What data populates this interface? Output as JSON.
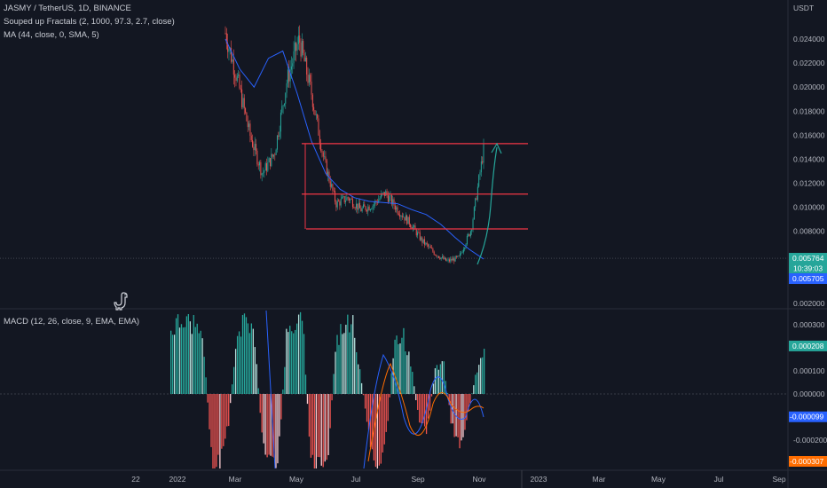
{
  "legend": {
    "symbol": "JASMY / TetherUS, 1D, BINANCE",
    "fractals": "Souped up Fractals (2, 1000, 97.3, 2.7, close)",
    "ma": "MA (44, close, 0, SMA, 5)",
    "macd": "MACD (12, 26, close, 9, EMA, EMA)"
  },
  "price_axis": {
    "unit": "USDT",
    "ticks": [
      "0.024000",
      "0.022000",
      "0.020000",
      "0.018000",
      "0.016000",
      "0.014000",
      "0.012000",
      "0.010000",
      "0.008000",
      "0.004000",
      "0.002000"
    ],
    "last_price": "0.005764",
    "countdown": "10:39:03",
    "ma_value": "0.005705"
  },
  "macd_axis": {
    "ticks": [
      "0.000300",
      "0.000100",
      "0.000000",
      "-0.000200"
    ],
    "histogram_value": "0.000208",
    "macd_value": "-0.000099",
    "signal_value": "-0.000307"
  },
  "time_axis": {
    "labels": [
      "22",
      "2022",
      "Mar",
      "May",
      "Jul",
      "Sep",
      "Nov",
      "2023",
      "Mar",
      "May",
      "Jul",
      "Sep"
    ]
  },
  "colors": {
    "background": "#131722",
    "up": "#26a69a",
    "down": "#ef5350",
    "ma_line": "#2962ff",
    "level_line": "#f23645",
    "arrow": "#26a69a",
    "macd_line": "#2962ff",
    "signal_line": "#ff6d00",
    "price_tag": "#26a69a",
    "ma_tag": "#2962ff",
    "signal_tag": "#ff6d00"
  },
  "chart_data": {
    "type": "line",
    "series": [
      {
        "values": [
          0.0245,
          0.0205,
          0.016,
          0.0128,
          0.0145,
          0.0205,
          0.024,
          0.0195,
          0.014,
          0.0103,
          0.0108,
          0.0098,
          0.0102,
          0.0112,
          0.0098,
          0.0087,
          0.0072,
          0.0062,
          0.0055,
          0.0058,
          0.0082,
          0.0148
        ]
      },
      {
        "values": [
          0.024,
          0.0215,
          0.02,
          0.0224,
          0.023,
          0.0195,
          0.0155,
          0.0128,
          0.0115,
          0.0108,
          0.0105,
          0.0104,
          0.0103,
          0.0098,
          0.0094,
          0.0086,
          0.0075,
          0.0065,
          0.0057
        ]
      }
    ],
    "levels": [
      0.0153,
      0.0111,
      0.0082
    ],
    "ylim": [
      0.0,
      0.0255
    ]
  }
}
